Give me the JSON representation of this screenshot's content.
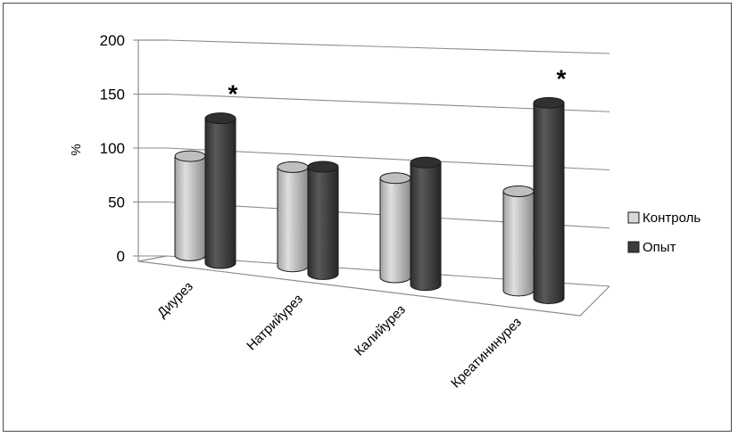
{
  "chart_data": {
    "type": "bar",
    "style": "3d-cylinder",
    "categories": [
      "Диурез",
      "Натрийурез",
      "Калийурез",
      "Креатининурез"
    ],
    "series": [
      {
        "name": "Контроль",
        "values": [
          100,
          100,
          100,
          100
        ],
        "color": "#d9d9d9"
      },
      {
        "name": "Опыт",
        "values": [
          143,
          106,
          121,
          193
        ],
        "color": "#3c3c3c"
      }
    ],
    "annotations": [
      "*",
      "",
      "",
      "*"
    ],
    "ylabel": "%",
    "ylim": [
      0,
      200
    ],
    "yticks": [
      "0",
      "50",
      "100",
      "150",
      "200"
    ],
    "grid": true,
    "legend_position": "right"
  }
}
